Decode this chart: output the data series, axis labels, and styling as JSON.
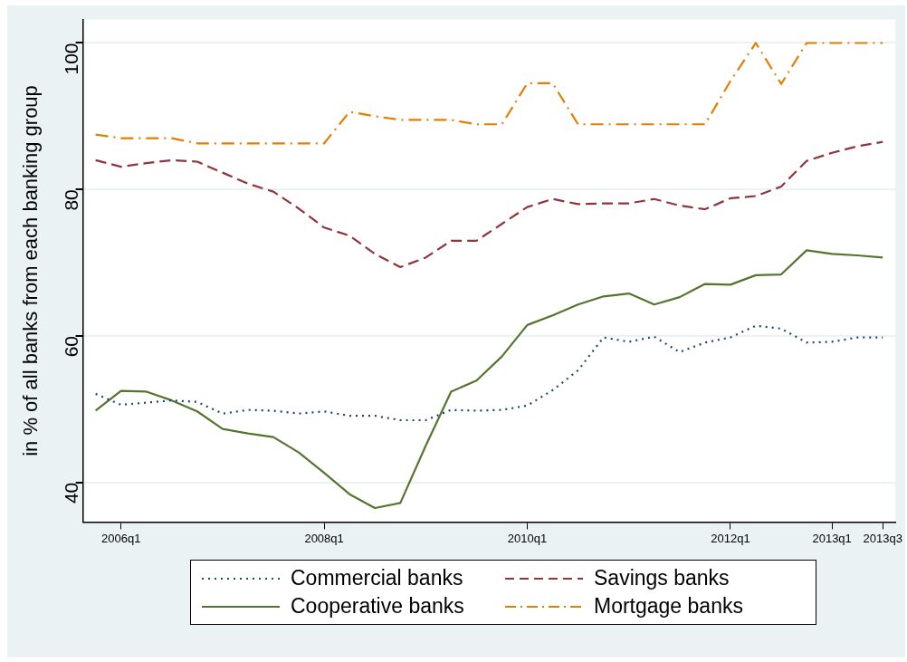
{
  "chart_data": {
    "type": "line",
    "ylabel": "in % of all banks from each banking group",
    "categories": [
      null,
      "2006q1",
      null,
      null,
      null,
      null,
      null,
      null,
      null,
      "2008q1",
      null,
      null,
      null,
      null,
      null,
      null,
      null,
      "2010q1",
      null,
      null,
      null,
      null,
      null,
      null,
      null,
      "2012q1",
      null,
      null,
      null,
      "2013q1",
      null,
      "2013q3"
    ],
    "ylim": [
      34.6,
      103.2
    ],
    "yticks": [
      40,
      60,
      80,
      100
    ],
    "grid": "y",
    "legend": "bottom",
    "marker": "none",
    "series": [
      {
        "name": "Commercial banks",
        "color": "#1a476f",
        "line_style": "dotted",
        "values": [
          52.1,
          50.6,
          50.9,
          51.2,
          51.0,
          49.4,
          49.9,
          49.8,
          49.4,
          49.7,
          49.1,
          49.1,
          48.5,
          48.5,
          49.9,
          49.8,
          49.9,
          50.5,
          52.6,
          55.3,
          59.8,
          59.2,
          59.9,
          57.8,
          59.1,
          59.8,
          61.4,
          61.0,
          59.1,
          59.2,
          59.8,
          59.8
        ]
      },
      {
        "name": "Savings banks",
        "color": "#90353b",
        "line_style": "dashed",
        "values": [
          84.0,
          83.1,
          83.6,
          84.0,
          83.8,
          82.3,
          80.8,
          79.7,
          77.4,
          74.8,
          73.7,
          71.2,
          69.4,
          70.7,
          73.0,
          73.0,
          75.3,
          77.6,
          78.7,
          78.0,
          78.1,
          78.1,
          78.7,
          77.8,
          77.3,
          78.8,
          79.1,
          80.4,
          83.9,
          85.0,
          85.9,
          86.5
        ]
      },
      {
        "name": "Cooperative banks",
        "color": "#55752f",
        "line_style": "solid",
        "values": [
          49.8,
          52.5,
          52.4,
          51.2,
          49.7,
          47.3,
          46.7,
          46.2,
          44.1,
          41.3,
          38.4,
          36.5,
          37.2,
          45.0,
          52.4,
          53.9,
          57.2,
          61.5,
          62.8,
          64.3,
          65.4,
          65.8,
          64.3,
          65.3,
          67.1,
          67.0,
          68.3,
          68.4,
          71.7,
          71.2,
          71.0,
          70.7
        ]
      },
      {
        "name": "Mortgage banks",
        "color": "#e37e00",
        "line_style": "dashdot",
        "values": [
          87.5,
          87.0,
          87.0,
          87.0,
          86.3,
          86.3,
          86.3,
          86.3,
          86.3,
          86.3,
          90.6,
          90.0,
          89.5,
          89.5,
          89.5,
          88.9,
          88.9,
          94.5,
          94.5,
          88.9,
          88.9,
          88.9,
          88.9,
          88.9,
          88.9,
          94.8,
          100,
          94.4,
          100,
          100,
          100,
          100
        ]
      }
    ]
  }
}
